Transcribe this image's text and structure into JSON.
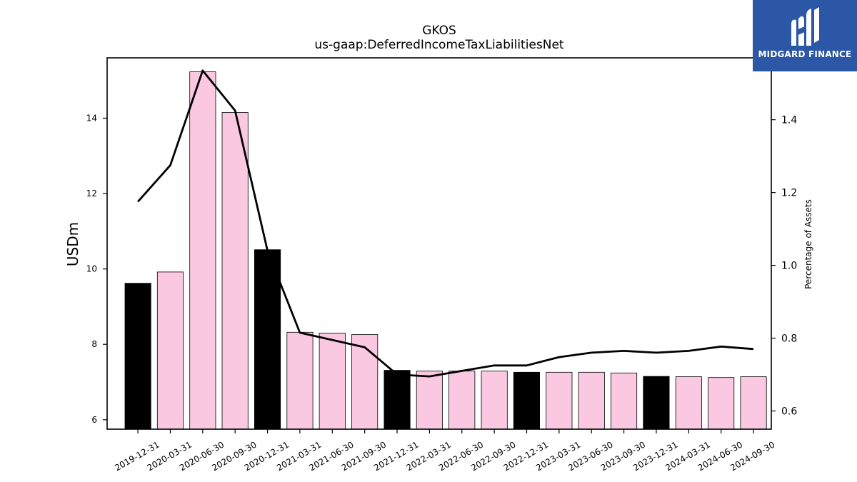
{
  "chart_data": {
    "type": "bar",
    "title": "GKOS",
    "subtitle": "us-gaap:DeferredIncomeTaxLiabilitiesNet",
    "ylabel": "USDm",
    "ylabel_right": "Percentage of Assets",
    "ylim": [
      5.75,
      15.6
    ],
    "ylim_right": [
      0.55,
      1.57
    ],
    "yticks": [
      6,
      8,
      10,
      12,
      14
    ],
    "yticks_right": [
      0.6,
      0.8,
      1.0,
      1.2,
      1.4
    ],
    "categories": [
      "2019-12-31",
      "2020-03-31",
      "2020-06-30",
      "2020-09-30",
      "2020-12-31",
      "2021-03-31",
      "2021-06-30",
      "2021-09-30",
      "2021-12-31",
      "2022-03-31",
      "2022-06-30",
      "2022-09-30",
      "2022-12-31",
      "2023-03-31",
      "2023-06-30",
      "2023-09-30",
      "2023-12-31",
      "2024-03-31",
      "2024-06-30",
      "2024-09-30"
    ],
    "series": [
      {
        "type": "bar",
        "axis": "left",
        "values": [
          9.62,
          9.92,
          15.23,
          14.15,
          10.51,
          8.32,
          8.3,
          8.26,
          7.31,
          7.29,
          7.29,
          7.29,
          7.26,
          7.26,
          7.26,
          7.24,
          7.15,
          7.14,
          7.12,
          7.14
        ],
        "annual_flags": [
          true,
          false,
          false,
          false,
          true,
          false,
          false,
          false,
          true,
          false,
          false,
          false,
          true,
          false,
          false,
          false,
          true,
          false,
          false,
          false
        ]
      },
      {
        "type": "line",
        "axis": "right",
        "values": [
          1.175,
          1.275,
          1.535,
          1.425,
          1.04,
          0.815,
          0.795,
          0.775,
          0.7,
          0.695,
          0.71,
          0.725,
          0.725,
          0.748,
          0.76,
          0.765,
          0.76,
          0.765,
          0.777,
          0.77
        ]
      }
    ],
    "colors": {
      "annual_bar": "#000000",
      "quarter_bar": "#fbc8e2",
      "line": "#000000"
    },
    "grid": false,
    "legend": "none"
  },
  "logo": {
    "text": "MIDGARD FINANCE",
    "icon": "midgard-m-logo-icon",
    "background": "#2b57a6"
  }
}
